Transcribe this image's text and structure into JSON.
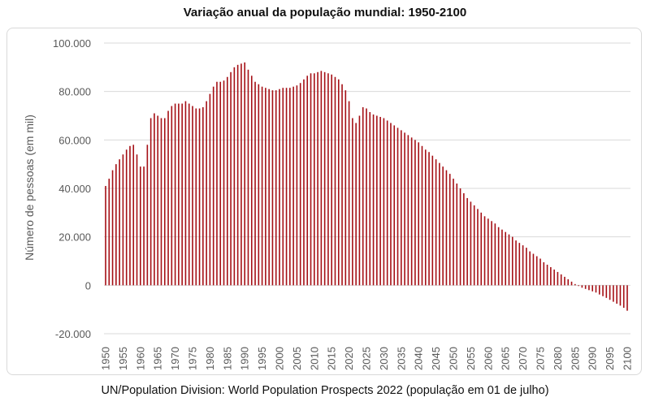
{
  "chart_data": {
    "type": "bar",
    "title": "Variação anual da população mundial: 1950-2100",
    "ylabel": "Número de pessoas (em mil)",
    "xlabel": "",
    "source": "UN/Population Division: World Population Prospects 2022 (população em 01 de julho)",
    "ylim": [
      -20000,
      100000
    ],
    "yticks": [
      -20000,
      0,
      20000,
      40000,
      60000,
      80000,
      100000
    ],
    "ytick_labels": [
      "-20.000",
      "0",
      "20.000",
      "40.000",
      "60.000",
      "80.000",
      "100.000"
    ],
    "xtick_labels": [
      "1950",
      "1955",
      "1960",
      "1965",
      "1970",
      "1975",
      "1980",
      "1985",
      "1990",
      "1995",
      "2000",
      "2005",
      "2010",
      "2015",
      "2020",
      "2025",
      "2030",
      "2035",
      "2040",
      "2045",
      "2050",
      "2055",
      "2060",
      "2065",
      "2070",
      "2075",
      "2080",
      "2085",
      "2090",
      "2095",
      "2100"
    ],
    "grid": true,
    "bar_color": "#a50f15",
    "x": [
      1950,
      1951,
      1952,
      1953,
      1954,
      1955,
      1956,
      1957,
      1958,
      1959,
      1960,
      1961,
      1962,
      1963,
      1964,
      1965,
      1966,
      1967,
      1968,
      1969,
      1970,
      1971,
      1972,
      1973,
      1974,
      1975,
      1976,
      1977,
      1978,
      1979,
      1980,
      1981,
      1982,
      1983,
      1984,
      1985,
      1986,
      1987,
      1988,
      1989,
      1990,
      1991,
      1992,
      1993,
      1994,
      1995,
      1996,
      1997,
      1998,
      1999,
      2000,
      2001,
      2002,
      2003,
      2004,
      2005,
      2006,
      2007,
      2008,
      2009,
      2010,
      2011,
      2012,
      2013,
      2014,
      2015,
      2016,
      2017,
      2018,
      2019,
      2020,
      2021,
      2022,
      2023,
      2024,
      2025,
      2026,
      2027,
      2028,
      2029,
      2030,
      2031,
      2032,
      2033,
      2034,
      2035,
      2036,
      2037,
      2038,
      2039,
      2040,
      2041,
      2042,
      2043,
      2044,
      2045,
      2046,
      2047,
      2048,
      2049,
      2050,
      2051,
      2052,
      2053,
      2054,
      2055,
      2056,
      2057,
      2058,
      2059,
      2060,
      2061,
      2062,
      2063,
      2064,
      2065,
      2066,
      2067,
      2068,
      2069,
      2070,
      2071,
      2072,
      2073,
      2074,
      2075,
      2076,
      2077,
      2078,
      2079,
      2080,
      2081,
      2082,
      2083,
      2084,
      2085,
      2086,
      2087,
      2088,
      2089,
      2090,
      2091,
      2092,
      2093,
      2094,
      2095,
      2096,
      2097,
      2098,
      2099,
      2100
    ],
    "values": [
      41000,
      44000,
      47500,
      50000,
      52000,
      54000,
      56000,
      57500,
      58000,
      54000,
      49000,
      49000,
      58000,
      69000,
      71000,
      70000,
      69000,
      69000,
      72000,
      74000,
      75000,
      75000,
      75000,
      76000,
      75000,
      74000,
      73000,
      73000,
      73500,
      76000,
      79000,
      82000,
      84000,
      84000,
      84500,
      86000,
      88000,
      90000,
      91000,
      91500,
      92000,
      89000,
      86500,
      84000,
      83000,
      82000,
      81500,
      81000,
      80500,
      80500,
      81000,
      81500,
      81500,
      81500,
      82000,
      82500,
      83500,
      85000,
      86500,
      87500,
      87500,
      88000,
      88500,
      88000,
      87500,
      87000,
      86000,
      85000,
      83000,
      80500,
      76000,
      69000,
      67000,
      70000,
      73500,
      73000,
      71500,
      70500,
      70000,
      69500,
      69000,
      68000,
      67000,
      66000,
      65000,
      64000,
      63000,
      62000,
      61000,
      60000,
      59000,
      57500,
      56000,
      55000,
      53500,
      52000,
      50500,
      49000,
      47500,
      46000,
      44000,
      42000,
      40000,
      38000,
      36000,
      34500,
      33000,
      31500,
      30000,
      28500,
      27500,
      26500,
      25500,
      24000,
      23000,
      22000,
      21000,
      20000,
      18500,
      17500,
      16500,
      15500,
      14000,
      13000,
      12000,
      11000,
      9500,
      8500,
      7500,
      6500,
      5500,
      4500,
      3500,
      2500,
      1500,
      500,
      -300,
      -1000,
      -1500,
      -2000,
      -2500,
      -3000,
      -3800,
      -4500,
      -5200,
      -6000,
      -6800,
      -7600,
      -8400,
      -9300,
      -10500
    ]
  }
}
